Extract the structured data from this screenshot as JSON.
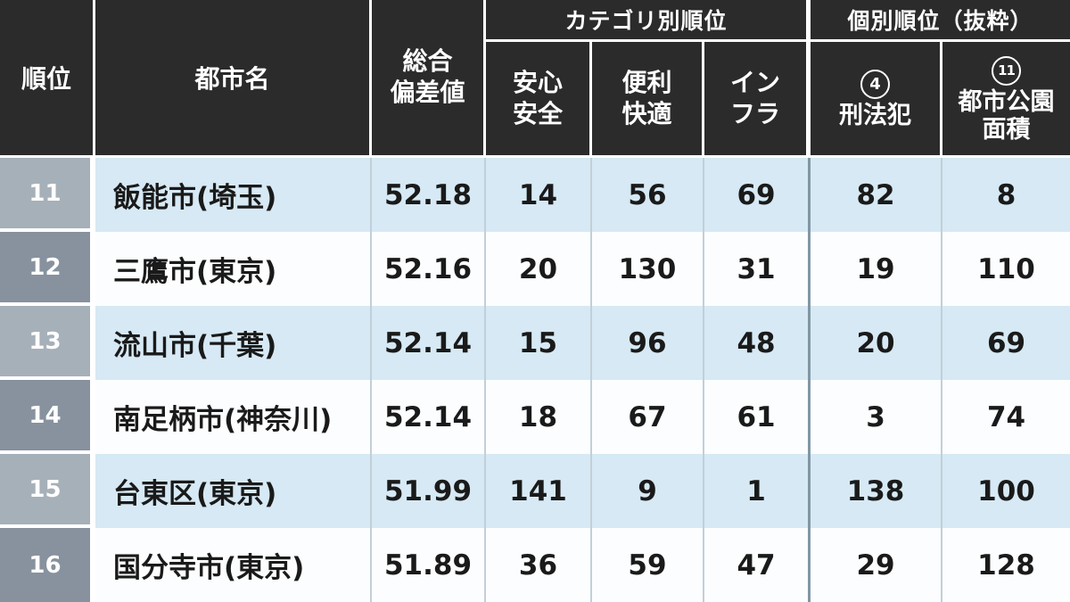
{
  "header_display": {
    "rank": "順位",
    "city": "都市名",
    "deviation_l1": "総合",
    "deviation_l2": "偏差値",
    "group_category": "カテゴリ別順位",
    "group_individual": "個別順位（抜粋）",
    "safety_l1": "安心",
    "safety_l2": "安全",
    "convenience_l1": "便利",
    "convenience_l2": "快適",
    "infra_l1": "イン",
    "infra_l2": "フラ",
    "crime_badge": "4",
    "crime_label": "刑法犯",
    "park_badge": "11",
    "park_l1": "都市公園",
    "park_l2": "面積"
  },
  "chart_data": {
    "type": "table",
    "columns": [
      "順位",
      "都市名",
      "総合偏差値",
      "安心安全",
      "便利快適",
      "インフラ",
      "④刑法犯",
      "⑪都市公園面積"
    ],
    "column_groups": [
      {
        "label": "カテゴリ別順位",
        "columns": [
          "安心安全",
          "便利快適",
          "インフラ"
        ]
      },
      {
        "label": "個別順位（抜粋）",
        "columns": [
          "④刑法犯",
          "⑪都市公園面積"
        ]
      }
    ],
    "rows": [
      [
        11,
        "飯能市(埼玉)",
        52.18,
        14,
        56,
        69,
        82,
        8
      ],
      [
        12,
        "三鷹市(東京)",
        52.16,
        20,
        130,
        31,
        19,
        110
      ],
      [
        13,
        "流山市(千葉)",
        52.14,
        15,
        96,
        48,
        20,
        69
      ],
      [
        14,
        "南足柄市(神奈川)",
        52.14,
        18,
        67,
        61,
        3,
        74
      ],
      [
        15,
        "台東区(東京)",
        51.99,
        141,
        9,
        1,
        138,
        100
      ],
      [
        16,
        "国分寺市(東京)",
        51.89,
        36,
        59,
        47,
        29,
        128
      ]
    ]
  },
  "colors": {
    "header_bg": "#2b2b2b",
    "header_text": "#ffffff",
    "row_alt_blue": "#d6e9f4",
    "row_white": "#fcfdfe",
    "rank_cell_light": "#a6b0b9",
    "rank_cell_dark": "#87929e",
    "divider_light": "#c2cfd8",
    "divider_group": "#8197a4",
    "body_text": "#1a1a1a"
  }
}
